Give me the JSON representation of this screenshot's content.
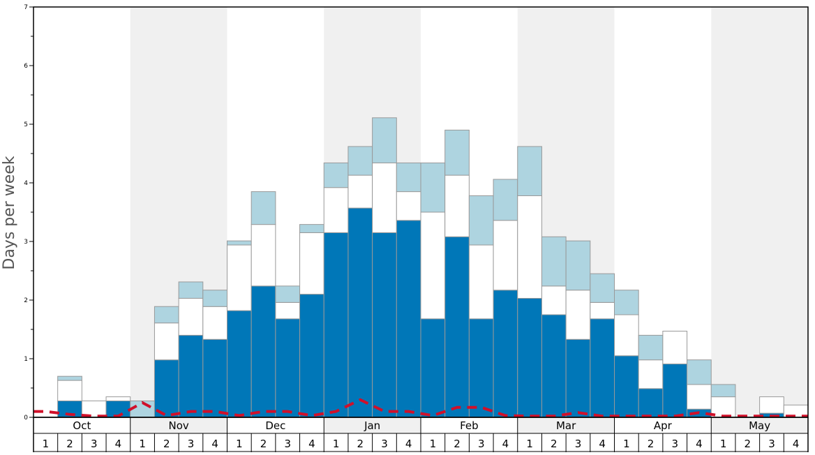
{
  "chart_data": {
    "type": "bar",
    "stacked": true,
    "ylabel": "Days per week",
    "ylim": [
      0,
      7
    ],
    "yticks": [
      "0",
      "1",
      "2",
      "3",
      "4",
      "5",
      "6",
      "7"
    ],
    "months": [
      "Oct",
      "Nov",
      "Dec",
      "Jan",
      "Feb",
      "Mar",
      "Apr",
      "May"
    ],
    "weeks": [
      "1",
      "2",
      "3",
      "4"
    ],
    "shaded_months": [
      1,
      3,
      5,
      7
    ],
    "colors": {
      "bottom": "#0077b8",
      "middle": "#ffffff",
      "top": "#aed4e0",
      "shade": "#f0f0f0",
      "line": "#d0102a",
      "bar_edge": "#999999"
    },
    "series": [
      {
        "values": [
          0,
          0.28,
          0,
          0.28,
          0,
          0.98,
          1.4,
          1.33,
          1.82,
          2.24,
          1.68,
          2.1,
          3.15,
          3.57,
          3.15,
          3.36,
          1.68,
          3.08,
          1.68,
          2.17,
          2.03,
          1.75,
          1.33,
          1.68,
          1.05,
          0.49,
          0.91,
          0.14,
          0,
          0,
          0.07,
          0
        ]
      },
      {
        "values": [
          0,
          0.35,
          0.28,
          0.07,
          0,
          0.63,
          0.63,
          0.56,
          1.12,
          1.05,
          0.28,
          1.05,
          0.77,
          0.56,
          1.19,
          0.49,
          1.82,
          1.05,
          1.26,
          1.19,
          1.75,
          0.49,
          0.84,
          0.28,
          0.7,
          0.49,
          0.56,
          0.42,
          0.35,
          0,
          0.28,
          0.21
        ]
      },
      {
        "values": [
          0,
          0.07,
          0,
          0,
          0.28,
          0.28,
          0.28,
          0.28,
          0.07,
          0.56,
          0.28,
          0.14,
          0.42,
          0.49,
          0.77,
          0.49,
          0.84,
          0.77,
          0.84,
          0.7,
          0.84,
          0.84,
          0.84,
          0.49,
          0.42,
          0.42,
          0,
          0.42,
          0.21,
          0,
          0,
          0
        ]
      },
      {
        "type": "line",
        "style": "dashed",
        "values": [
          0.1,
          0.05,
          0.02,
          0.02,
          0.25,
          0.03,
          0.1,
          0.1,
          0.03,
          0.1,
          0.1,
          0.03,
          0.1,
          0.3,
          0.1,
          0.1,
          0.03,
          0.17,
          0.17,
          0.03,
          0.02,
          0.02,
          0.08,
          0.02,
          0.02,
          0.02,
          0.02,
          0.08,
          0.02,
          0.02,
          0.02,
          0.02
        ]
      }
    ]
  }
}
